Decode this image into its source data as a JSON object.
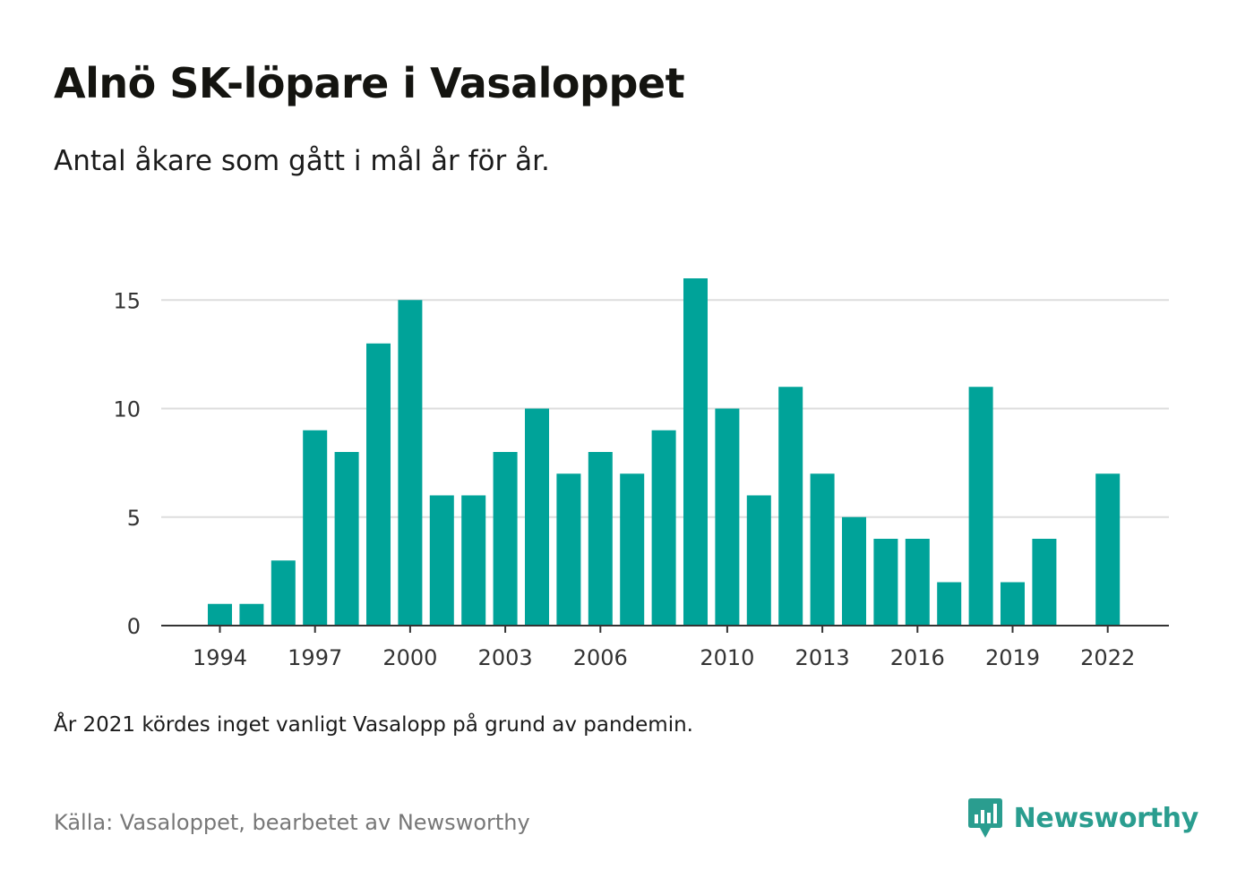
{
  "title": "Alnö SK-löpare i Vasaloppet",
  "subtitle": "Antal åkare som gått i mål år för år.",
  "note": "År 2021 kördes inget vanligt Vasalopp på grund av pandemin.",
  "source": "Källa: Vasaloppet, bearbetet av Newsworthy",
  "brand": {
    "name": "Newsworthy",
    "icon": "newsworthy-logo-icon"
  },
  "colors": {
    "bar": "#00a399",
    "grid": "#dddddd",
    "axis": "#333333",
    "brand": "#2a9d8f"
  },
  "chart_data": {
    "type": "bar",
    "categories": [
      1994,
      1995,
      1996,
      1997,
      1998,
      1999,
      2000,
      2001,
      2002,
      2003,
      2004,
      2005,
      2006,
      2007,
      2008,
      2009,
      2010,
      2011,
      2012,
      2013,
      2014,
      2015,
      2016,
      2017,
      2018,
      2019,
      2020,
      2021,
      2022
    ],
    "values": [
      1,
      1,
      3,
      9,
      8,
      13,
      15,
      6,
      6,
      8,
      10,
      7,
      8,
      7,
      9,
      16,
      10,
      6,
      11,
      7,
      5,
      4,
      4,
      2,
      11,
      2,
      4,
      null,
      7
    ],
    "x_tick_labels": [
      "1994",
      "1997",
      "2000",
      "2003",
      "2006",
      "2010",
      "2013",
      "2016",
      "2019",
      "2022"
    ],
    "y_ticks": [
      0,
      5,
      10,
      15
    ],
    "ylim": [
      0,
      16
    ],
    "grid": true,
    "legend": "none"
  }
}
